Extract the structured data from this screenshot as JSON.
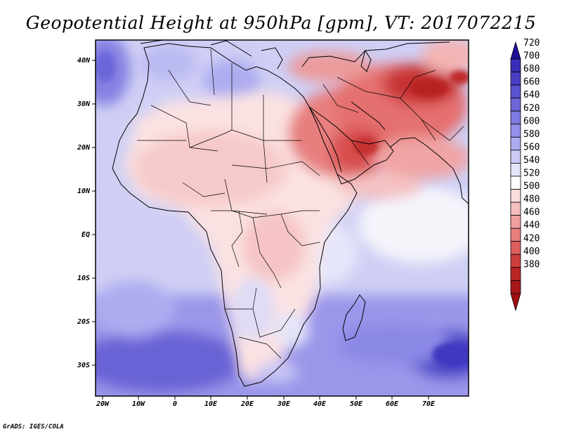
{
  "title": "Geopotential Height at 950hPa [gpm], VT: 2017072215",
  "footer": "GrADS: IGES/COLA",
  "map": {
    "lat_labels": [
      "40N",
      "30N",
      "20N",
      "10N",
      "EQ",
      "10S",
      "20S",
      "30S"
    ],
    "lon_labels": [
      "20W",
      "10W",
      "0",
      "10E",
      "20E",
      "30E",
      "40E",
      "50E",
      "60E",
      "70E"
    ],
    "extent": {
      "lon_min": -23,
      "lon_max": 80,
      "lat_min": -37,
      "lat_max": 45
    }
  },
  "colorbar": {
    "labels": [
      "720",
      "700",
      "680",
      "660",
      "640",
      "620",
      "600",
      "580",
      "560",
      "540",
      "520",
      "500",
      "480",
      "460",
      "440",
      "420",
      "400",
      "380"
    ],
    "colors": [
      "#2a1aa8",
      "#3a2eb8",
      "#4a3fc4",
      "#5a52cf",
      "#6c66d9",
      "#7f7ae2",
      "#9490e9",
      "#aeacf0",
      "#cacaf5",
      "#e6e6fa",
      "#ffffff",
      "#fbdcdc",
      "#f6bfbf",
      "#f0a0a0",
      "#e87f7f",
      "#de5e5e",
      "#cf3e3e",
      "#bb2626",
      "#a81818"
    ],
    "top_arrow_color": "#1e0f9a",
    "bottom_arrow_color": "#a01010"
  }
}
